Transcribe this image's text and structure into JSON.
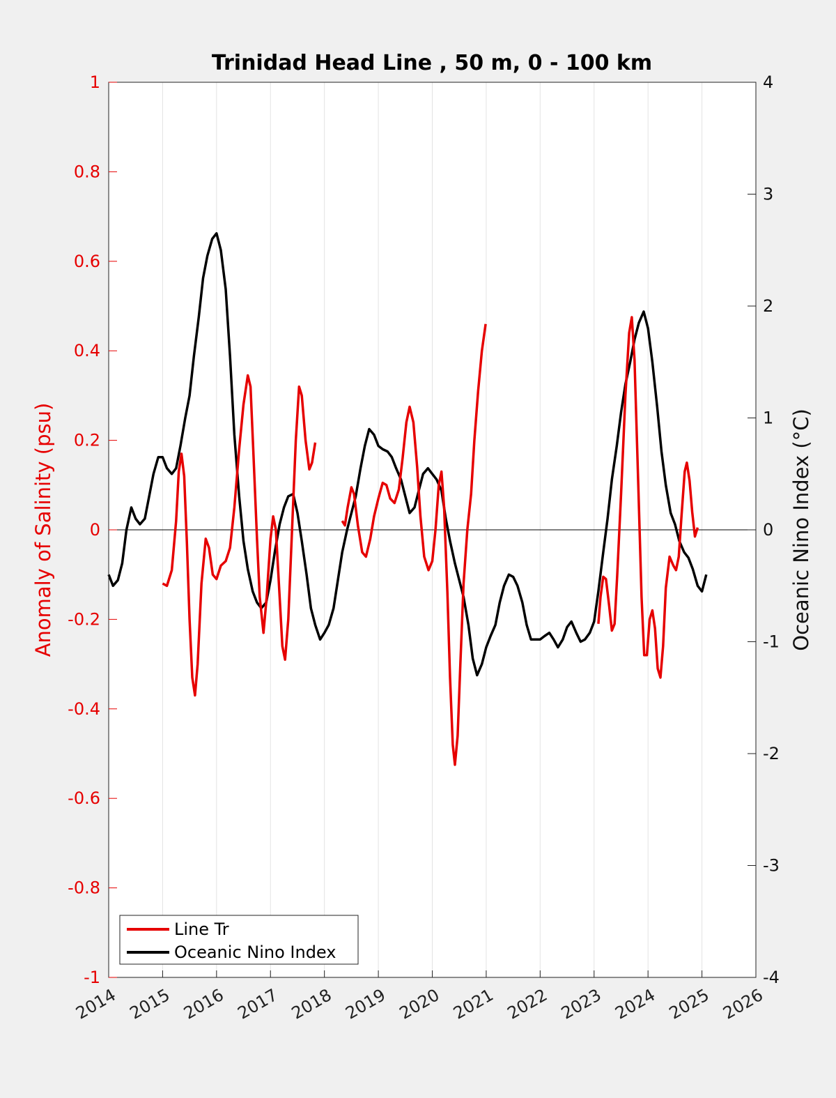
{
  "chart_data": {
    "type": "line",
    "title": "Trinidad Head Line , 50 m, 0 - 100 km",
    "ylabel_left": "Anomaly of Salinity (psu)",
    "ylabel_right": "Oceanic Nino Index (°C)",
    "xlim": [
      2014,
      2026
    ],
    "ylim_left": [
      -1,
      1
    ],
    "ylim_right": [
      -4,
      4
    ],
    "xticks": [
      "2014",
      "2015",
      "2016",
      "2017",
      "2018",
      "2019",
      "2020",
      "2021",
      "2022",
      "2023",
      "2024",
      "2025",
      "2026"
    ],
    "yticks_left": [
      "1",
      "0.8",
      "0.6",
      "0.4",
      "0.2",
      "0",
      "-0.2",
      "-0.4",
      "-0.6",
      "-0.8",
      "-1"
    ],
    "yticks_right": [
      "4",
      "3",
      "2",
      "1",
      "0",
      "-1",
      "-2",
      "-3",
      "-4"
    ],
    "grid": "vertical",
    "zero_line": true,
    "legend": {
      "placement": "bottom-left",
      "entries": [
        "Line Tr",
        "Oceanic Nino Index"
      ]
    },
    "colors": {
      "line_tr": "#e60000",
      "oni": "#000000",
      "left_axis": "#e60000",
      "right_axis": "#111111"
    },
    "series": [
      {
        "name": "Line Tr",
        "axis": "left",
        "segments": [
          [
            [
              2015.0,
              -0.12
            ],
            [
              2015.08,
              -0.125
            ],
            [
              2015.17,
              -0.09
            ],
            [
              2015.25,
              0.02
            ],
            [
              2015.3,
              0.13
            ],
            [
              2015.35,
              0.17
            ],
            [
              2015.4,
              0.12
            ],
            [
              2015.45,
              -0.03
            ],
            [
              2015.5,
              -0.2
            ],
            [
              2015.55,
              -0.33
            ],
            [
              2015.6,
              -0.37
            ],
            [
              2015.65,
              -0.3
            ],
            [
              2015.72,
              -0.12
            ],
            [
              2015.8,
              -0.02
            ],
            [
              2015.86,
              -0.04
            ],
            [
              2015.93,
              -0.1
            ],
            [
              2016.0,
              -0.11
            ],
            [
              2016.08,
              -0.08
            ],
            [
              2016.17,
              -0.07
            ],
            [
              2016.25,
              -0.04
            ],
            [
              2016.33,
              0.05
            ],
            [
              2016.42,
              0.18
            ],
            [
              2016.5,
              0.28
            ],
            [
              2016.58,
              0.345
            ],
            [
              2016.63,
              0.32
            ],
            [
              2016.68,
              0.18
            ],
            [
              2016.75,
              -0.02
            ],
            [
              2016.8,
              -0.15
            ],
            [
              2016.87,
              -0.23
            ],
            [
              2016.93,
              -0.15
            ],
            [
              2017.0,
              -0.02
            ],
            [
              2017.05,
              0.03
            ],
            [
              2017.1,
              0.0
            ],
            [
              2017.17,
              -0.15
            ],
            [
              2017.22,
              -0.26
            ],
            [
              2017.27,
              -0.29
            ],
            [
              2017.33,
              -0.2
            ],
            [
              2017.4,
              0.0
            ],
            [
              2017.47,
              0.2
            ],
            [
              2017.53,
              0.32
            ],
            [
              2017.58,
              0.3
            ],
            [
              2017.65,
              0.2
            ],
            [
              2017.72,
              0.135
            ],
            [
              2017.77,
              0.15
            ],
            [
              2017.83,
              0.195
            ]
          ],
          [
            [
              2018.33,
              0.02
            ],
            [
              2018.38,
              0.01
            ],
            [
              2018.43,
              0.05
            ],
            [
              2018.5,
              0.095
            ],
            [
              2018.55,
              0.08
            ],
            [
              2018.62,
              0.01
            ],
            [
              2018.7,
              -0.05
            ],
            [
              2018.77,
              -0.06
            ],
            [
              2018.85,
              -0.02
            ],
            [
              2018.92,
              0.03
            ],
            [
              2019.0,
              0.07
            ],
            [
              2019.08,
              0.105
            ],
            [
              2019.15,
              0.1
            ],
            [
              2019.22,
              0.07
            ],
            [
              2019.3,
              0.06
            ],
            [
              2019.38,
              0.09
            ],
            [
              2019.45,
              0.16
            ],
            [
              2019.52,
              0.24
            ],
            [
              2019.58,
              0.275
            ],
            [
              2019.65,
              0.24
            ],
            [
              2019.72,
              0.14
            ],
            [
              2019.78,
              0.03
            ],
            [
              2019.85,
              -0.06
            ],
            [
              2019.93,
              -0.09
            ],
            [
              2020.0,
              -0.07
            ],
            [
              2020.06,
              0.0
            ],
            [
              2020.12,
              0.1
            ],
            [
              2020.17,
              0.13
            ],
            [
              2020.22,
              0.05
            ],
            [
              2020.28,
              -0.14
            ],
            [
              2020.33,
              -0.33
            ],
            [
              2020.38,
              -0.48
            ],
            [
              2020.42,
              -0.525
            ],
            [
              2020.47,
              -0.46
            ],
            [
              2020.52,
              -0.3
            ],
            [
              2020.58,
              -0.12
            ],
            [
              2020.65,
              0.0
            ],
            [
              2020.72,
              0.08
            ],
            [
              2020.78,
              0.2
            ],
            [
              2020.85,
              0.31
            ],
            [
              2020.92,
              0.4
            ],
            [
              2020.99,
              0.46
            ]
          ],
          [
            [
              2023.08,
              -0.21
            ],
            [
              2023.12,
              -0.15
            ],
            [
              2023.17,
              -0.105
            ],
            [
              2023.22,
              -0.11
            ],
            [
              2023.28,
              -0.17
            ],
            [
              2023.33,
              -0.225
            ],
            [
              2023.38,
              -0.21
            ],
            [
              2023.43,
              -0.1
            ],
            [
              2023.5,
              0.08
            ],
            [
              2023.58,
              0.3
            ],
            [
              2023.65,
              0.44
            ],
            [
              2023.7,
              0.475
            ],
            [
              2023.75,
              0.38
            ],
            [
              2023.82,
              0.1
            ],
            [
              2023.88,
              -0.15
            ],
            [
              2023.93,
              -0.28
            ],
            [
              2023.98,
              -0.28
            ],
            [
              2024.03,
              -0.2
            ],
            [
              2024.08,
              -0.18
            ],
            [
              2024.13,
              -0.22
            ],
            [
              2024.18,
              -0.31
            ],
            [
              2024.23,
              -0.33
            ],
            [
              2024.28,
              -0.26
            ],
            [
              2024.33,
              -0.13
            ],
            [
              2024.4,
              -0.06
            ],
            [
              2024.47,
              -0.08
            ],
            [
              2024.52,
              -0.09
            ],
            [
              2024.57,
              -0.06
            ],
            [
              2024.62,
              0.03
            ],
            [
              2024.68,
              0.13
            ],
            [
              2024.72,
              0.15
            ],
            [
              2024.77,
              0.11
            ],
            [
              2024.82,
              0.04
            ],
            [
              2024.87,
              -0.015
            ],
            [
              2024.92,
              0.005
            ]
          ]
        ]
      },
      {
        "name": "Oceanic Nino Index",
        "axis": "right",
        "points": [
          [
            2014.0,
            -0.4
          ],
          [
            2014.08,
            -0.5
          ],
          [
            2014.17,
            -0.45
          ],
          [
            2014.25,
            -0.3
          ],
          [
            2014.33,
            0.0
          ],
          [
            2014.42,
            0.2
          ],
          [
            2014.5,
            0.1
          ],
          [
            2014.58,
            0.05
          ],
          [
            2014.67,
            0.1
          ],
          [
            2014.75,
            0.3
          ],
          [
            2014.83,
            0.5
          ],
          [
            2014.92,
            0.65
          ],
          [
            2015.0,
            0.65
          ],
          [
            2015.08,
            0.55
          ],
          [
            2015.17,
            0.5
          ],
          [
            2015.25,
            0.55
          ],
          [
            2015.33,
            0.75
          ],
          [
            2015.42,
            1.0
          ],
          [
            2015.5,
            1.2
          ],
          [
            2015.58,
            1.55
          ],
          [
            2015.67,
            1.9
          ],
          [
            2015.75,
            2.25
          ],
          [
            2015.83,
            2.45
          ],
          [
            2015.92,
            2.6
          ],
          [
            2016.0,
            2.65
          ],
          [
            2016.08,
            2.5
          ],
          [
            2016.17,
            2.15
          ],
          [
            2016.25,
            1.55
          ],
          [
            2016.33,
            0.85
          ],
          [
            2016.42,
            0.3
          ],
          [
            2016.5,
            -0.1
          ],
          [
            2016.58,
            -0.35
          ],
          [
            2016.67,
            -0.55
          ],
          [
            2016.75,
            -0.65
          ],
          [
            2016.83,
            -0.7
          ],
          [
            2016.92,
            -0.65
          ],
          [
            2017.0,
            -0.45
          ],
          [
            2017.08,
            -0.2
          ],
          [
            2017.17,
            0.05
          ],
          [
            2017.25,
            0.2
          ],
          [
            2017.33,
            0.3
          ],
          [
            2017.42,
            0.32
          ],
          [
            2017.5,
            0.15
          ],
          [
            2017.58,
            -0.1
          ],
          [
            2017.67,
            -0.4
          ],
          [
            2017.75,
            -0.7
          ],
          [
            2017.83,
            -0.85
          ],
          [
            2017.92,
            -0.98
          ],
          [
            2018.0,
            -0.92
          ],
          [
            2018.08,
            -0.85
          ],
          [
            2018.17,
            -0.7
          ],
          [
            2018.25,
            -0.45
          ],
          [
            2018.33,
            -0.2
          ],
          [
            2018.42,
            0.0
          ],
          [
            2018.5,
            0.15
          ],
          [
            2018.58,
            0.3
          ],
          [
            2018.67,
            0.55
          ],
          [
            2018.75,
            0.75
          ],
          [
            2018.83,
            0.9
          ],
          [
            2018.92,
            0.85
          ],
          [
            2019.0,
            0.75
          ],
          [
            2019.08,
            0.72
          ],
          [
            2019.17,
            0.7
          ],
          [
            2019.25,
            0.65
          ],
          [
            2019.33,
            0.55
          ],
          [
            2019.42,
            0.45
          ],
          [
            2019.5,
            0.3
          ],
          [
            2019.58,
            0.15
          ],
          [
            2019.67,
            0.2
          ],
          [
            2019.75,
            0.35
          ],
          [
            2019.83,
            0.5
          ],
          [
            2019.92,
            0.55
          ],
          [
            2020.0,
            0.5
          ],
          [
            2020.08,
            0.45
          ],
          [
            2020.17,
            0.35
          ],
          [
            2020.25,
            0.1
          ],
          [
            2020.33,
            -0.1
          ],
          [
            2020.42,
            -0.3
          ],
          [
            2020.5,
            -0.45
          ],
          [
            2020.58,
            -0.6
          ],
          [
            2020.67,
            -0.85
          ],
          [
            2020.75,
            -1.15
          ],
          [
            2020.83,
            -1.3
          ],
          [
            2020.92,
            -1.2
          ],
          [
            2021.0,
            -1.05
          ],
          [
            2021.08,
            -0.95
          ],
          [
            2021.17,
            -0.85
          ],
          [
            2021.25,
            -0.65
          ],
          [
            2021.33,
            -0.5
          ],
          [
            2021.42,
            -0.4
          ],
          [
            2021.5,
            -0.42
          ],
          [
            2021.58,
            -0.5
          ],
          [
            2021.67,
            -0.65
          ],
          [
            2021.75,
            -0.85
          ],
          [
            2021.83,
            -0.98
          ],
          [
            2021.92,
            -0.98
          ],
          [
            2022.0,
            -0.98
          ],
          [
            2022.08,
            -0.95
          ],
          [
            2022.17,
            -0.92
          ],
          [
            2022.25,
            -0.98
          ],
          [
            2022.33,
            -1.05
          ],
          [
            2022.42,
            -0.98
          ],
          [
            2022.5,
            -0.87
          ],
          [
            2022.58,
            -0.82
          ],
          [
            2022.67,
            -0.92
          ],
          [
            2022.75,
            -1.0
          ],
          [
            2022.83,
            -0.98
          ],
          [
            2022.92,
            -0.92
          ],
          [
            2023.0,
            -0.82
          ],
          [
            2023.08,
            -0.55
          ],
          [
            2023.17,
            -0.2
          ],
          [
            2023.25,
            0.1
          ],
          [
            2023.33,
            0.45
          ],
          [
            2023.42,
            0.75
          ],
          [
            2023.5,
            1.05
          ],
          [
            2023.58,
            1.3
          ],
          [
            2023.67,
            1.5
          ],
          [
            2023.75,
            1.7
          ],
          [
            2023.83,
            1.85
          ],
          [
            2023.92,
            1.95
          ],
          [
            2024.0,
            1.8
          ],
          [
            2024.08,
            1.5
          ],
          [
            2024.17,
            1.1
          ],
          [
            2024.25,
            0.7
          ],
          [
            2024.33,
            0.4
          ],
          [
            2024.42,
            0.15
          ],
          [
            2024.5,
            0.05
          ],
          [
            2024.58,
            -0.1
          ],
          [
            2024.67,
            -0.2
          ],
          [
            2024.75,
            -0.25
          ],
          [
            2024.83,
            -0.35
          ],
          [
            2024.92,
            -0.5
          ],
          [
            2025.0,
            -0.55
          ],
          [
            2025.08,
            -0.4
          ]
        ]
      }
    ]
  }
}
